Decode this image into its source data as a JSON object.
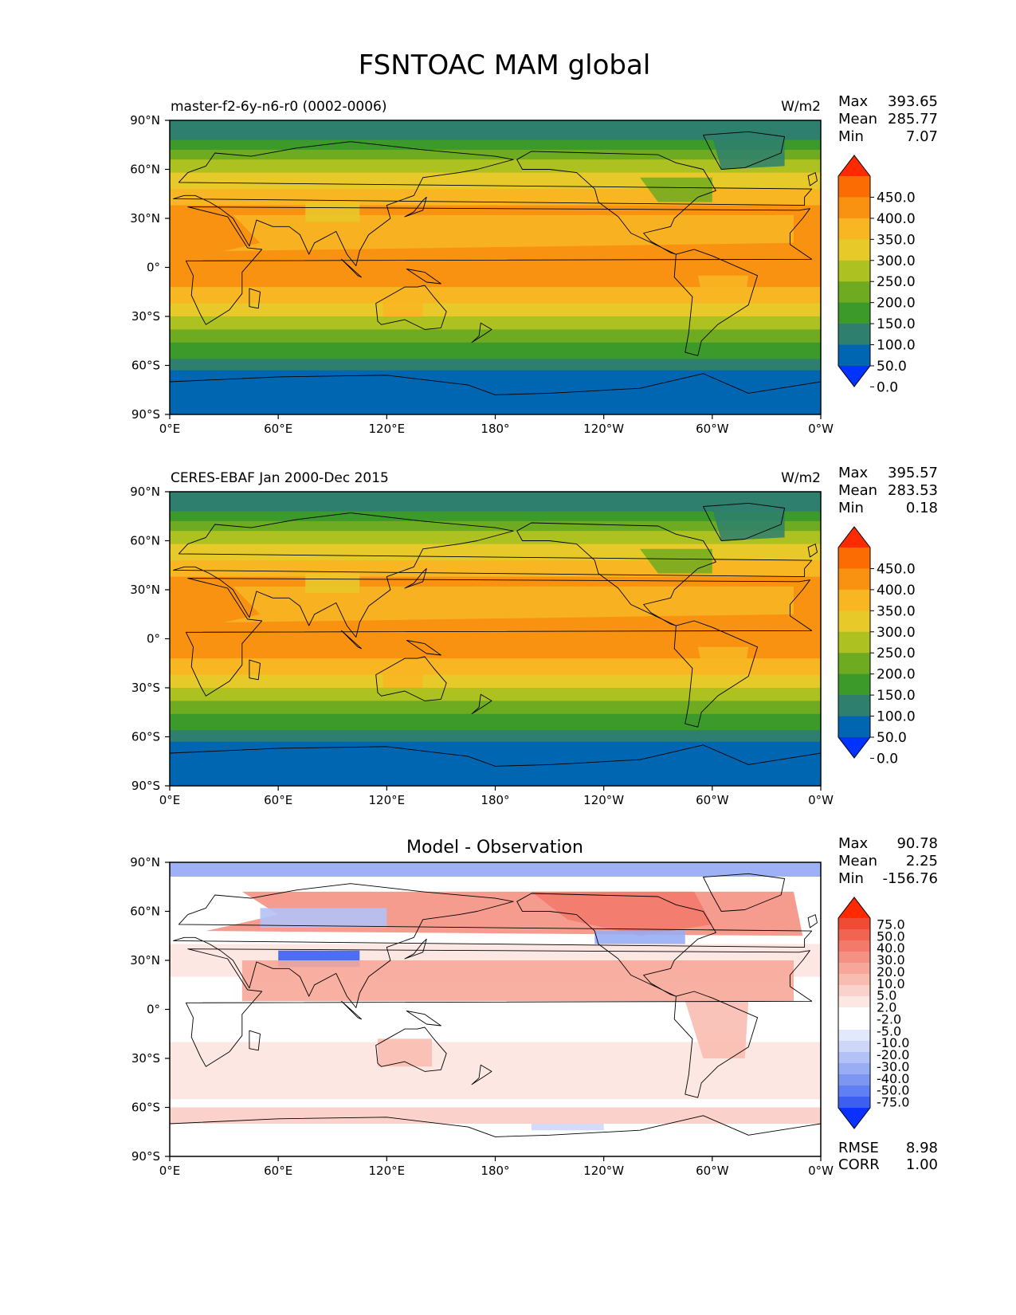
{
  "figure": {
    "title": "FSNTOAC MAM global"
  },
  "stat_labels": {
    "max": "Max",
    "mean": "Mean",
    "min": "Min",
    "rmse": "RMSE",
    "corr": "CORR"
  },
  "lon_ticks": [
    "0°E",
    "60°E",
    "120°E",
    "180°",
    "120°W",
    "60°W",
    "0°W"
  ],
  "lat_ticks": [
    "90°N",
    "60°N",
    "30°N",
    "0°",
    "30°S",
    "60°S",
    "90°S"
  ],
  "colors": {
    "abs_levels": [
      "#0033ff",
      "#0066b2",
      "#2e7f6e",
      "#3b9a2a",
      "#6eab20",
      "#adc221",
      "#e8c92a",
      "#f8b623",
      "#f99210",
      "#fb6c03",
      "#ff2a00"
    ],
    "diff_levels": [
      "#0a31ff",
      "#3c5ff2",
      "#5f7ff2",
      "#7d96f2",
      "#98adf4",
      "#b3c2f6",
      "#cdd8f8",
      "#e2e9fb",
      "#ffffff",
      "#ffffff",
      "#fde7e3",
      "#fbd2cb",
      "#f9bcb1",
      "#f7a799",
      "#f59183",
      "#f37a6b",
      "#f16452",
      "#ef4b35",
      "#ff2a00"
    ],
    "land_line": "#000000"
  },
  "panels": {
    "test": {
      "name": "master-f2-6y-n6-r0 (0002-0006)",
      "units": "W/m2",
      "max": "393.65",
      "mean": "285.77",
      "min": "7.07",
      "colorbar_ticks": [
        "450.0",
        "400.0",
        "350.0",
        "300.0",
        "250.0",
        "200.0",
        "150.0",
        "100.0",
        "50.0",
        "0.0"
      ]
    },
    "ref": {
      "name": "CERES-EBAF Jan 2000-Dec 2015",
      "units": "W/m2",
      "max": "395.57",
      "mean": "283.53",
      "min": "0.18",
      "colorbar_ticks": [
        "450.0",
        "400.0",
        "350.0",
        "300.0",
        "250.0",
        "200.0",
        "150.0",
        "100.0",
        "50.0",
        "0.0"
      ]
    },
    "diff": {
      "title": "Model - Observation",
      "max": "90.78",
      "mean": "2.25",
      "min": "-156.76",
      "rmse": "8.98",
      "corr": "1.00",
      "colorbar_ticks": [
        "75.0",
        "50.0",
        "40.0",
        "30.0",
        "20.0",
        "10.0",
        "5.0",
        "2.0",
        "-2.0",
        "-5.0",
        "-10.0",
        "-20.0",
        "-30.0",
        "-40.0",
        "-50.0",
        "-75.0"
      ]
    }
  }
}
